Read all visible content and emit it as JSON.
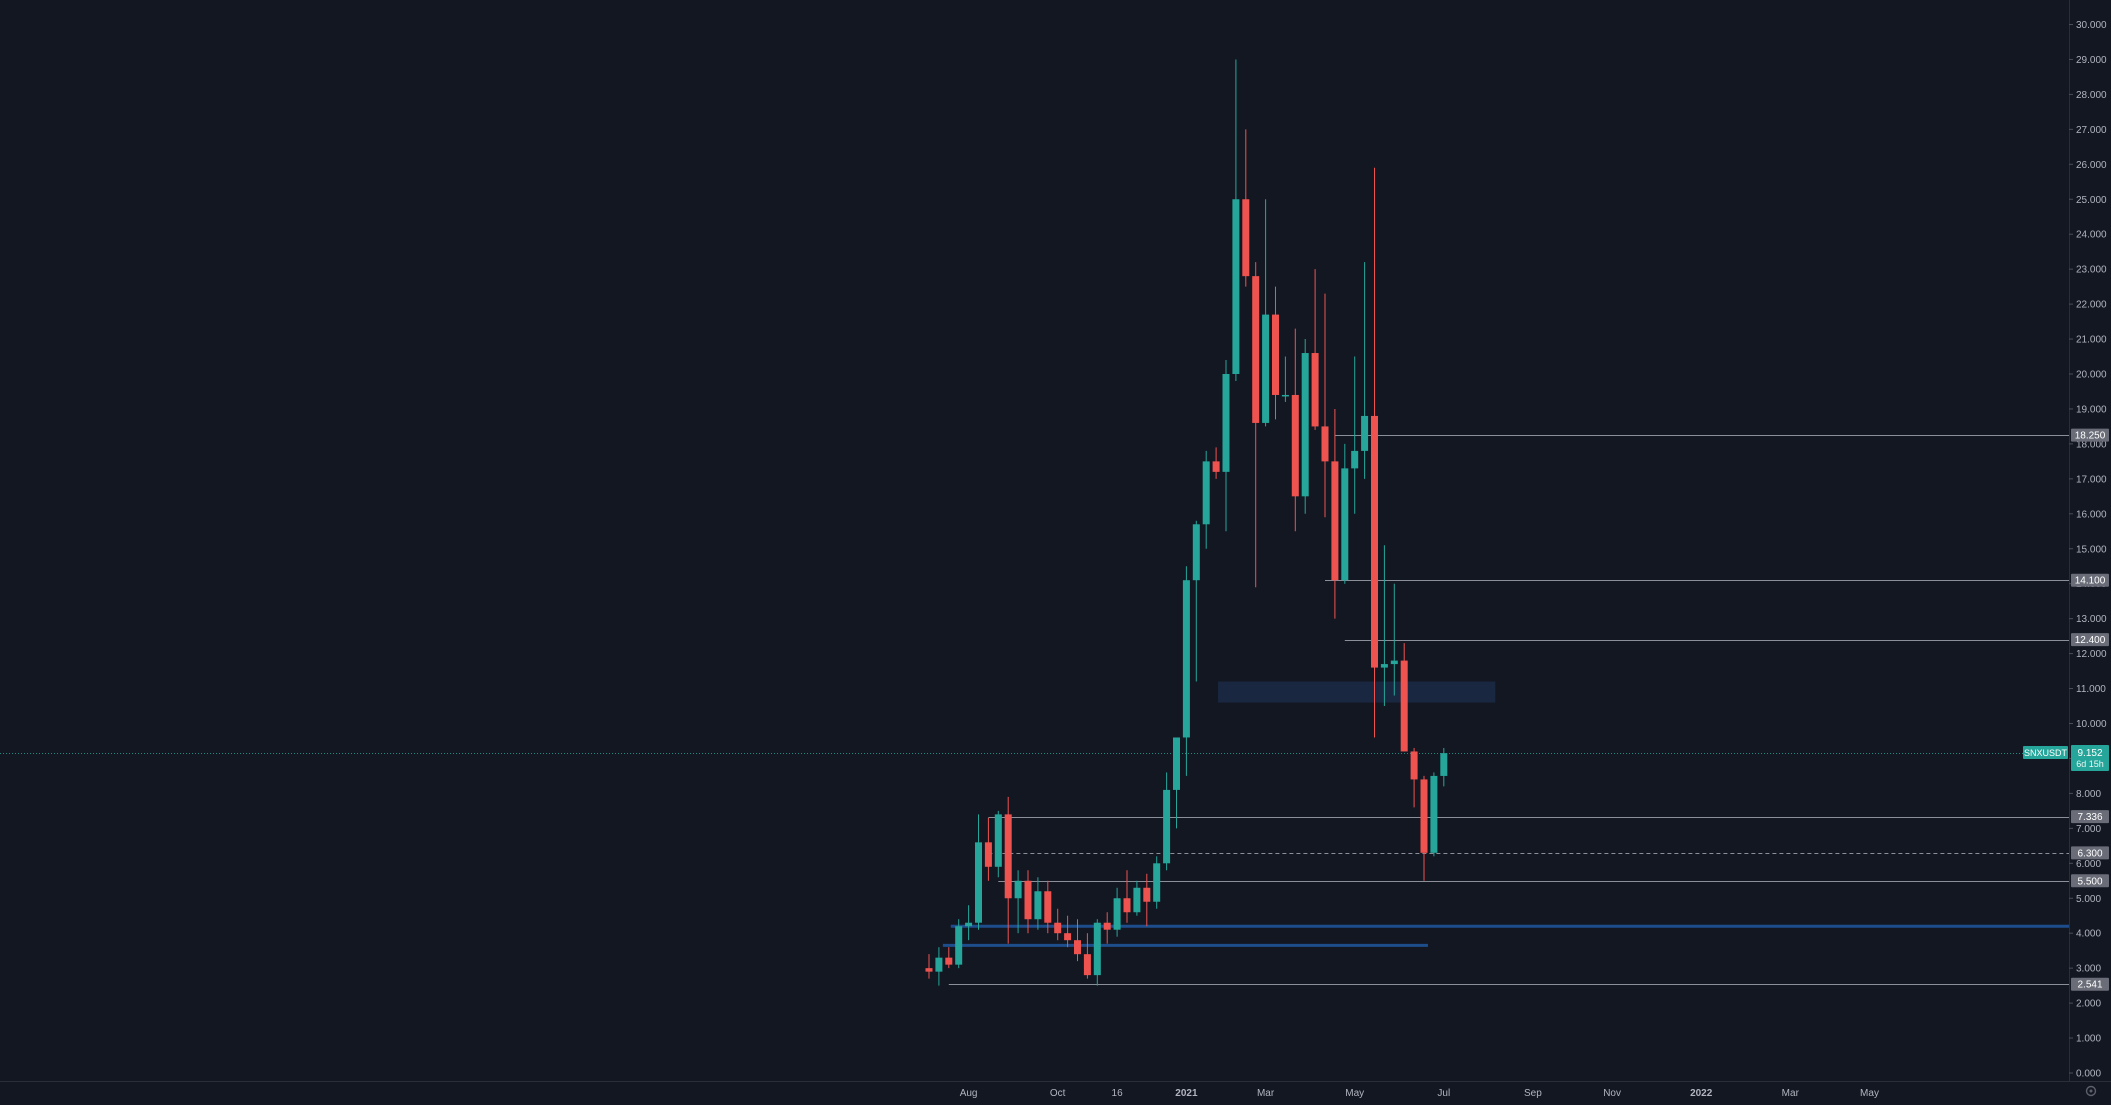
{
  "symbol": "SNXUSDT",
  "countdown": "6d 15h",
  "colors": {
    "background": "#131722",
    "up": "#26a69a",
    "down": "#ef5350",
    "level_line": "#8b8f99",
    "blue_line": "#1e4d8c",
    "zone_fill": "#1b2a44",
    "axis_text": "#b2b5be",
    "label_bg": "#6a6d78",
    "last_price_bg": "#26a69a"
  },
  "chart_data": {
    "type": "candlestick",
    "timeframe": "1W",
    "y_axis": {
      "min": 0,
      "max": 30,
      "ticks": [
        "0.000",
        "1.000",
        "2.000",
        "3.000",
        "4.000",
        "5.000",
        "6.000",
        "7.000",
        "8.000",
        "9.000",
        "10.000",
        "11.000",
        "12.000",
        "13.000",
        "14.000",
        "15.000",
        "16.000",
        "17.000",
        "18.000",
        "19.000",
        "20.000",
        "21.000",
        "22.000",
        "23.000",
        "24.000",
        "25.000",
        "26.000",
        "27.000",
        "28.000",
        "29.000",
        "30.000"
      ]
    },
    "x_axis": {
      "ticks": [
        {
          "label": "Aug",
          "week": 4
        },
        {
          "label": "Oct",
          "week": 13
        },
        {
          "label": "16",
          "week": 19
        },
        {
          "label": "2021",
          "week": 26
        },
        {
          "label": "Mar",
          "week": 34
        },
        {
          "label": "May",
          "week": 43
        },
        {
          "label": "Jul",
          "week": 52
        },
        {
          "label": "Sep",
          "week": 61
        },
        {
          "label": "Nov",
          "week": 69
        },
        {
          "label": "2022",
          "week": 78
        },
        {
          "label": "Mar",
          "week": 87
        },
        {
          "label": "May",
          "week": 95
        }
      ]
    },
    "candles": [
      {
        "o": 3.0,
        "h": 3.4,
        "l": 2.7,
        "c": 2.9
      },
      {
        "o": 2.9,
        "h": 3.6,
        "l": 2.5,
        "c": 3.3
      },
      {
        "o": 3.3,
        "h": 3.6,
        "l": 3.0,
        "c": 3.1
      },
      {
        "o": 3.1,
        "h": 4.4,
        "l": 3.0,
        "c": 4.2
      },
      {
        "o": 4.2,
        "h": 4.8,
        "l": 3.8,
        "c": 4.3
      },
      {
        "o": 4.3,
        "h": 7.4,
        "l": 4.1,
        "c": 6.6
      },
      {
        "o": 6.6,
        "h": 7.3,
        "l": 5.5,
        "c": 5.9
      },
      {
        "o": 5.9,
        "h": 7.5,
        "l": 5.6,
        "c": 7.4
      },
      {
        "o": 7.4,
        "h": 7.9,
        "l": 3.7,
        "c": 5.0
      },
      {
        "o": 5.0,
        "h": 5.8,
        "l": 4.0,
        "c": 5.5
      },
      {
        "o": 5.5,
        "h": 5.8,
        "l": 4.0,
        "c": 4.4
      },
      {
        "o": 4.4,
        "h": 5.6,
        "l": 4.1,
        "c": 5.2
      },
      {
        "o": 5.2,
        "h": 5.5,
        "l": 4.0,
        "c": 4.3
      },
      {
        "o": 4.3,
        "h": 4.7,
        "l": 3.8,
        "c": 4.0
      },
      {
        "o": 4.0,
        "h": 4.5,
        "l": 3.6,
        "c": 3.8
      },
      {
        "o": 3.8,
        "h": 4.4,
        "l": 3.2,
        "c": 3.4
      },
      {
        "o": 3.4,
        "h": 4.0,
        "l": 2.7,
        "c": 2.8
      },
      {
        "o": 2.8,
        "h": 4.4,
        "l": 2.5,
        "c": 4.3
      },
      {
        "o": 4.3,
        "h": 4.6,
        "l": 3.7,
        "c": 4.1
      },
      {
        "o": 4.1,
        "h": 5.3,
        "l": 3.9,
        "c": 5.0
      },
      {
        "o": 5.0,
        "h": 5.8,
        "l": 4.3,
        "c": 4.6
      },
      {
        "o": 4.6,
        "h": 5.5,
        "l": 4.5,
        "c": 5.3
      },
      {
        "o": 5.3,
        "h": 5.7,
        "l": 4.2,
        "c": 4.9
      },
      {
        "o": 4.9,
        "h": 6.2,
        "l": 4.7,
        "c": 6.0
      },
      {
        "o": 6.0,
        "h": 8.6,
        "l": 5.8,
        "c": 8.1
      },
      {
        "o": 8.1,
        "h": 9.3,
        "l": 7.0,
        "c": 9.6
      },
      {
        "o": 9.6,
        "h": 14.5,
        "l": 8.5,
        "c": 14.1
      },
      {
        "o": 14.1,
        "h": 15.8,
        "l": 11.2,
        "c": 15.7
      },
      {
        "o": 15.7,
        "h": 17.8,
        "l": 15.0,
        "c": 17.5
      },
      {
        "o": 17.5,
        "h": 17.9,
        "l": 17.0,
        "c": 17.2
      },
      {
        "o": 17.2,
        "h": 20.4,
        "l": 15.5,
        "c": 20.0
      },
      {
        "o": 20.0,
        "h": 29.0,
        "l": 19.8,
        "c": 25.0
      },
      {
        "o": 25.0,
        "h": 27.0,
        "l": 22.5,
        "c": 22.8
      },
      {
        "o": 22.8,
        "h": 23.2,
        "l": 13.9,
        "c": 18.6
      },
      {
        "o": 18.6,
        "h": 25.0,
        "l": 18.5,
        "c": 21.7
      },
      {
        "o": 21.7,
        "h": 22.5,
        "l": 18.7,
        "c": 19.4
      },
      {
        "o": 19.4,
        "h": 20.5,
        "l": 19.2,
        "c": 19.4
      },
      {
        "o": 19.4,
        "h": 21.3,
        "l": 15.5,
        "c": 16.5
      },
      {
        "o": 16.5,
        "h": 21.0,
        "l": 16.0,
        "c": 20.6
      },
      {
        "o": 20.6,
        "h": 23.0,
        "l": 18.4,
        "c": 18.5
      },
      {
        "o": 18.5,
        "h": 22.3,
        "l": 15.9,
        "c": 17.5
      },
      {
        "o": 17.5,
        "h": 19.0,
        "l": 13.0,
        "c": 14.1
      },
      {
        "o": 14.1,
        "h": 18.0,
        "l": 14.0,
        "c": 17.3
      },
      {
        "o": 17.3,
        "h": 20.5,
        "l": 16.0,
        "c": 17.8
      },
      {
        "o": 17.8,
        "h": 23.2,
        "l": 17.0,
        "c": 18.8
      },
      {
        "o": 18.8,
        "h": 25.9,
        "l": 9.6,
        "c": 11.6
      },
      {
        "o": 11.6,
        "h": 15.1,
        "l": 10.5,
        "c": 11.7
      },
      {
        "o": 11.7,
        "h": 14.0,
        "l": 10.8,
        "c": 11.8
      },
      {
        "o": 11.8,
        "h": 12.3,
        "l": 9.2,
        "c": 9.2
      },
      {
        "o": 9.2,
        "h": 9.3,
        "l": 7.6,
        "c": 8.4
      },
      {
        "o": 8.4,
        "h": 8.5,
        "l": 5.5,
        "c": 6.3
      },
      {
        "o": 6.3,
        "h": 8.6,
        "l": 6.2,
        "c": 8.5
      },
      {
        "o": 8.5,
        "h": 9.3,
        "l": 8.2,
        "c": 9.152
      }
    ],
    "levels": [
      {
        "price": 18.25,
        "label": "18.250",
        "from_week": 41,
        "style": "solid"
      },
      {
        "price": 14.1,
        "label": "14.100",
        "from_week": 40,
        "style": "solid"
      },
      {
        "price": 12.4,
        "label": "12.400",
        "from_week": 42,
        "style": "solid"
      },
      {
        "price": 7.336,
        "label": "7.336",
        "from_week": 6,
        "style": "solid"
      },
      {
        "price": 6.3,
        "label": "6.300",
        "from_week": 6,
        "style": "dashed"
      },
      {
        "price": 5.5,
        "label": "5.500",
        "from_week": 7,
        "style": "solid"
      },
      {
        "price": 2.541,
        "label": "2.541",
        "from_week": 2,
        "style": "solid"
      }
    ],
    "blue_lines": [
      {
        "price": 4.2,
        "from_week": 2.2,
        "to_week": "end"
      },
      {
        "price": 3.65,
        "from_week": 1.4,
        "to_week": 50.4
      }
    ],
    "zone": {
      "from_week": 29.2,
      "to_week": 57.2,
      "low": 10.6,
      "high": 11.2
    },
    "last_price": {
      "value": 9.152,
      "label": "9.152"
    }
  }
}
